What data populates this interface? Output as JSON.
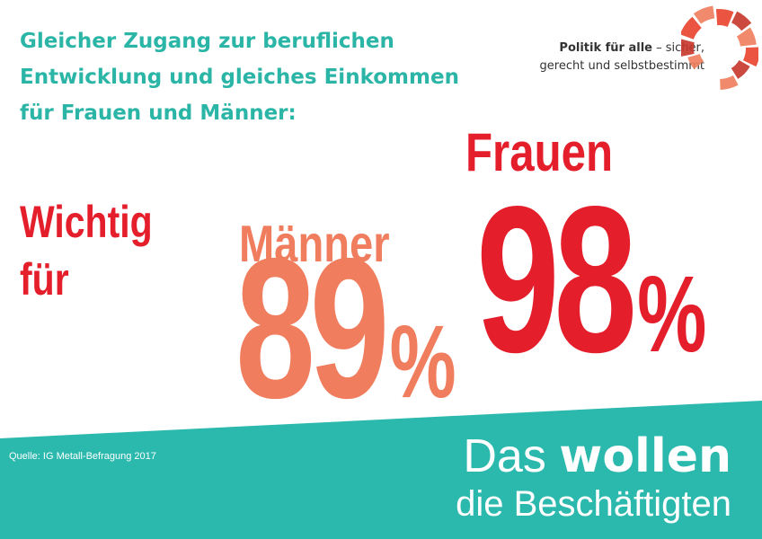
{
  "header": {
    "headline_lines": [
      "Gleicher Zugang zur beruflichen",
      "Entwicklung und gleiches Einkommen",
      "für Frauen und Männer:"
    ]
  },
  "brand": {
    "tagline_strong": "Politik für alle",
    "tagline_rest": " – sicher,",
    "tagline_line2": "gerecht und selbstbestimmt",
    "logo_icon": "segmented-circle-logo",
    "logo_colors": [
      "#e8412c",
      "#f07d5d",
      "#c7352a"
    ]
  },
  "chart_data": {
    "type": "bar",
    "title": "Gleicher Zugang zur beruflichen Entwicklung und gleiches Einkommen für Frauen und Männer:",
    "category_label_lines": [
      "Wichtig",
      "für"
    ],
    "categories": [
      "Männer",
      "Frauen"
    ],
    "values": [
      89,
      98
    ],
    "unit": "%",
    "display_values": [
      "89",
      "98"
    ],
    "colors": [
      "#f07d5d",
      "#e41e2b"
    ]
  },
  "footer": {
    "source": "Quelle: IG Metall-Befragung 2017",
    "tagline_word1": "Das ",
    "tagline_word2": "wollen",
    "tagline_line2": "die Beschäftigten",
    "band_color": "#2bb8ad"
  }
}
